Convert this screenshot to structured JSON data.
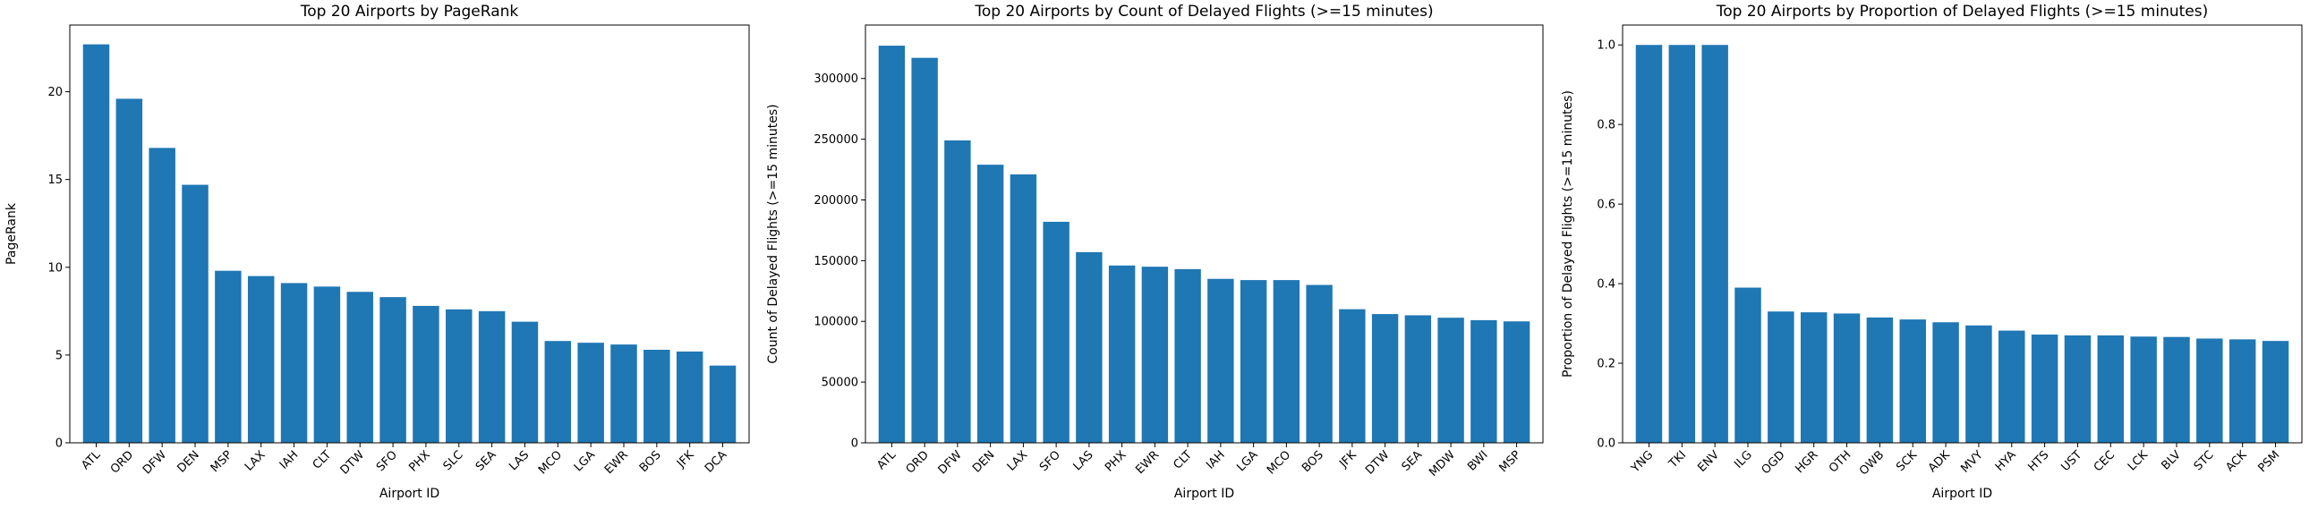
{
  "chart_data": [
    {
      "type": "bar",
      "title": "Top 20 Airports by PageRank",
      "xlabel": "Airport ID",
      "ylabel": "PageRank",
      "ylim": [
        0,
        23.8
      ],
      "yticks": [
        0,
        5,
        10,
        15,
        20
      ],
      "ytick_labels": [
        "0",
        "5",
        "10",
        "15",
        "20"
      ],
      "categories": [
        "ATL",
        "ORD",
        "DFW",
        "DEN",
        "MSP",
        "LAX",
        "IAH",
        "CLT",
        "DTW",
        "SFO",
        "PHX",
        "SLC",
        "SEA",
        "LAS",
        "MCO",
        "LGA",
        "EWR",
        "BOS",
        "JFK",
        "DCA"
      ],
      "values": [
        22.7,
        19.6,
        16.8,
        14.7,
        9.8,
        9.5,
        9.1,
        8.9,
        8.6,
        8.3,
        7.8,
        7.6,
        7.5,
        6.9,
        5.8,
        5.7,
        5.6,
        5.3,
        5.2,
        4.4
      ],
      "color": "#1f77b4",
      "grid": false
    },
    {
      "type": "bar",
      "title": "Top 20 Airports by Count of Delayed Flights (>=15 minutes)",
      "xlabel": "Airport ID",
      "ylabel": "Count of Delayed Flights (>=15 minutes)",
      "ylim": [
        0,
        344000
      ],
      "yticks": [
        0,
        50000,
        100000,
        150000,
        200000,
        250000,
        300000
      ],
      "ytick_labels": [
        "0",
        "50000",
        "100000",
        "150000",
        "200000",
        "250000",
        "300000"
      ],
      "categories": [
        "ATL",
        "ORD",
        "DFW",
        "DEN",
        "LAX",
        "SFO",
        "LAS",
        "PHX",
        "EWR",
        "CLT",
        "IAH",
        "LGA",
        "MCO",
        "BOS",
        "JFK",
        "DTW",
        "SEA",
        "MDW",
        "BWI",
        "MSP"
      ],
      "values": [
        327000,
        317000,
        249000,
        229000,
        221000,
        182000,
        157000,
        146000,
        145000,
        143000,
        135000,
        134000,
        134000,
        130000,
        110000,
        106000,
        105000,
        103000,
        101000,
        100000
      ],
      "color": "#1f77b4",
      "grid": false
    },
    {
      "type": "bar",
      "title": "Top 20 Airports by Proportion of Delayed Flights (>=15 minutes)",
      "xlabel": "Airport ID",
      "ylabel": "Proportion of Delayed Flights (>=15 minutes)",
      "ylim": [
        0,
        1.05
      ],
      "yticks": [
        0.0,
        0.2,
        0.4,
        0.6,
        0.8,
        1.0
      ],
      "ytick_labels": [
        "0.0",
        "0.2",
        "0.4",
        "0.6",
        "0.8",
        "1.0"
      ],
      "categories": [
        "YNG",
        "TKI",
        "ENV",
        "ILG",
        "OGD",
        "HGR",
        "OTH",
        "OWB",
        "SCK",
        "ADK",
        "MVY",
        "HYA",
        "HTS",
        "UST",
        "CEC",
        "LCK",
        "BLV",
        "STC",
        "ACK",
        "PSM"
      ],
      "values": [
        1.0,
        1.0,
        1.0,
        0.39,
        0.33,
        0.328,
        0.325,
        0.315,
        0.31,
        0.303,
        0.295,
        0.282,
        0.272,
        0.27,
        0.27,
        0.267,
        0.266,
        0.262,
        0.26,
        0.256
      ],
      "color": "#1f77b4",
      "grid": false
    }
  ]
}
